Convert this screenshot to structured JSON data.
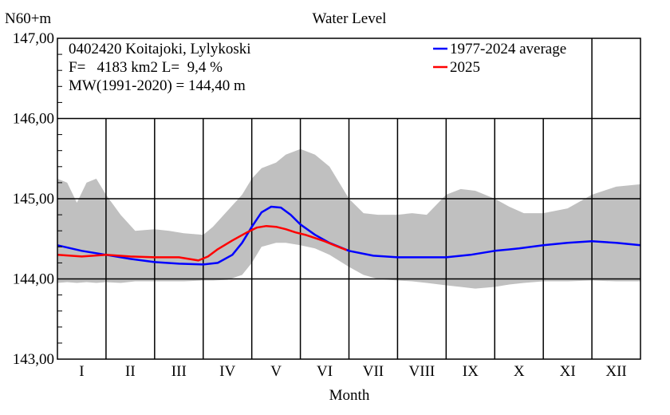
{
  "chart_data": {
    "type": "line",
    "title": "Water Level",
    "ylabel": "N60+m",
    "xlabel": "Month",
    "ylim": [
      143.0,
      147.0
    ],
    "yticks": [
      "143,00",
      "144,00",
      "145,00",
      "146,00",
      "147,00"
    ],
    "yticks_values": [
      143.0,
      144.0,
      145.0,
      146.0,
      147.0
    ],
    "categories": [
      "I",
      "II",
      "III",
      "IV",
      "V",
      "VI",
      "VII",
      "VIII",
      "IX",
      "X",
      "XI",
      "XII"
    ],
    "grid": true,
    "legend_position": "top-right",
    "info_lines": [
      "0402420 Koitajoki, Lylykoski",
      "F=   4183 km2 L=  9,4 %",
      "MW(1991-2020) = 144,40 m"
    ],
    "series": [
      {
        "name": "1977-2024 average",
        "color": "#0000ff",
        "x": [
          0,
          0.5,
          1,
          1.5,
          2,
          2.5,
          3,
          3.3,
          3.6,
          3.8,
          4.0,
          4.2,
          4.4,
          4.6,
          4.8,
          5.0,
          5.3,
          5.6,
          6.0,
          6.5,
          7.0,
          7.5,
          8.0,
          8.5,
          9.0,
          9.5,
          10.0,
          10.5,
          11.0,
          11.5,
          12
        ],
        "values": [
          144.42,
          144.35,
          144.3,
          144.25,
          144.21,
          144.19,
          144.18,
          144.2,
          144.3,
          144.45,
          144.65,
          144.83,
          144.9,
          144.89,
          144.8,
          144.68,
          144.55,
          144.45,
          144.35,
          144.29,
          144.27,
          144.27,
          144.27,
          144.3,
          144.35,
          144.38,
          144.42,
          144.45,
          144.47,
          144.45,
          144.42
        ]
      },
      {
        "name": "2025",
        "color": "#ff0000",
        "x": [
          0,
          0.5,
          1,
          1.5,
          2,
          2.5,
          2.9,
          3.1,
          3.3,
          3.6,
          3.9,
          4.1,
          4.3,
          4.5,
          4.7,
          4.9,
          5.1,
          5.3,
          5.5,
          5.7,
          5.95
        ],
        "values": [
          144.3,
          144.28,
          144.3,
          144.28,
          144.27,
          144.27,
          144.23,
          144.28,
          144.37,
          144.48,
          144.58,
          144.64,
          144.66,
          144.65,
          144.62,
          144.58,
          144.55,
          144.51,
          144.47,
          144.42,
          144.36
        ]
      }
    ],
    "band": {
      "color": "#c0c0c0",
      "x": [
        0,
        0.2,
        0.4,
        0.6,
        0.8,
        1.0,
        1.3,
        1.6,
        2.0,
        2.3,
        2.6,
        3.0,
        3.2,
        3.5,
        3.8,
        4.0,
        4.2,
        4.5,
        4.7,
        5.0,
        5.3,
        5.6,
        6.0,
        6.3,
        6.6,
        7.0,
        7.3,
        7.6,
        8.0,
        8.3,
        8.6,
        9.0,
        9.3,
        9.6,
        10.0,
        10.5,
        11.0,
        11.5,
        12
      ],
      "high": [
        145.25,
        145.2,
        144.95,
        145.2,
        145.25,
        145.05,
        144.8,
        144.6,
        144.62,
        144.6,
        144.57,
        144.55,
        144.65,
        144.85,
        145.05,
        145.25,
        145.38,
        145.45,
        145.55,
        145.62,
        145.55,
        145.4,
        145.0,
        144.82,
        144.8,
        144.8,
        144.82,
        144.8,
        145.05,
        145.12,
        145.1,
        145.0,
        144.9,
        144.82,
        144.82,
        144.88,
        145.05,
        145.15,
        145.18
      ],
      "low": [
        143.95,
        143.96,
        143.95,
        143.96,
        143.95,
        143.96,
        143.95,
        143.97,
        143.97,
        143.97,
        143.97,
        143.98,
        143.98,
        143.99,
        144.05,
        144.2,
        144.4,
        144.45,
        144.45,
        144.42,
        144.38,
        144.3,
        144.15,
        144.05,
        144.0,
        143.98,
        143.97,
        143.95,
        143.92,
        143.9,
        143.88,
        143.9,
        143.93,
        143.95,
        143.97,
        143.97,
        143.98,
        143.97,
        143.97
      ]
    }
  }
}
